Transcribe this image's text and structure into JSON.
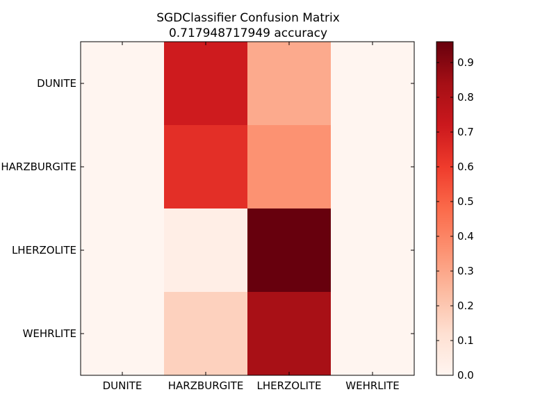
{
  "chart_data": {
    "type": "heatmap",
    "title_lines": [
      "SGDClassifier Confusion Matrix",
      "0.717948717949 accuracy"
    ],
    "x_categories": [
      "DUNITE",
      "HARZBURGITE",
      "LHERZOLITE",
      "WEHRLITE"
    ],
    "y_categories": [
      "DUNITE",
      "HARZBURGITE",
      "LHERZOLITE",
      "WEHRLITE"
    ],
    "values": [
      [
        0.0,
        0.71,
        0.29,
        0.0
      ],
      [
        0.0,
        0.64,
        0.36,
        0.0
      ],
      [
        0.0,
        0.04,
        0.96,
        0.0
      ],
      [
        0.0,
        0.17,
        0.83,
        0.0
      ]
    ],
    "colorbar": {
      "min": 0.0,
      "max": 0.96,
      "ticks": [
        0.0,
        0.1,
        0.2,
        0.3,
        0.4,
        0.5,
        0.6,
        0.7,
        0.8,
        0.9
      ],
      "tick_labels": [
        "0.0",
        "0.1",
        "0.2",
        "0.3",
        "0.4",
        "0.5",
        "0.6",
        "0.7",
        "0.8",
        "0.9"
      ]
    },
    "colormap": "Reds",
    "colormap_stops": [
      "#fff5f0",
      "#fee0d2",
      "#fcbba1",
      "#fc9272",
      "#fb6a4a",
      "#ef3b2c",
      "#cb181d",
      "#a50f15",
      "#67000d"
    ],
    "grid": false
  }
}
